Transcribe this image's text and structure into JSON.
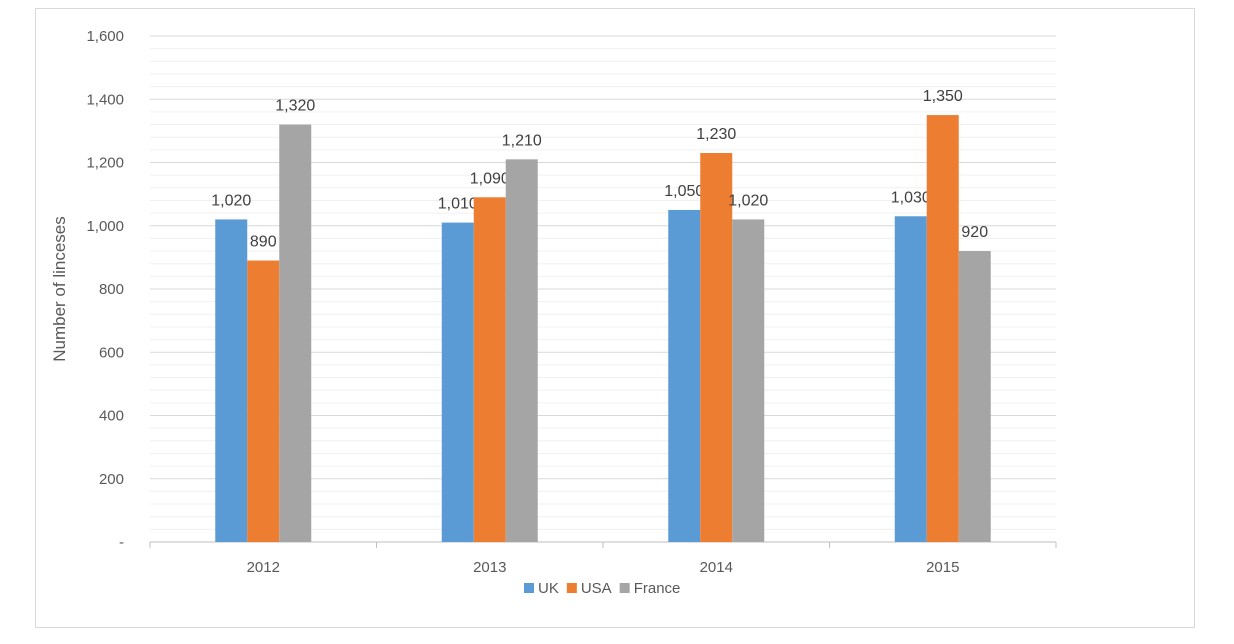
{
  "chart_data": {
    "type": "bar",
    "title": "",
    "xlabel": "",
    "ylabel": "Number of linceses",
    "categories": [
      "2012",
      "2013",
      "2014",
      "2015"
    ],
    "series": [
      {
        "name": "UK",
        "color": "#5b9bd5",
        "values": [
          1020,
          1010,
          1050,
          1030
        ],
        "labels": [
          "1,020",
          "1,010",
          "1,050",
          "1,030"
        ]
      },
      {
        "name": "USA",
        "color": "#ed7d31",
        "values": [
          890,
          1090,
          1230,
          1350
        ],
        "labels": [
          "890",
          "1,090",
          "1,230",
          "1,350"
        ]
      },
      {
        "name": "France",
        "color": "#a5a5a5",
        "values": [
          1320,
          1210,
          1020,
          920
        ],
        "labels": [
          "1,320",
          "1,210",
          "1,020",
          "920"
        ]
      }
    ],
    "ylim": [
      0,
      1600
    ],
    "yticks": [
      0,
      200,
      400,
      600,
      800,
      1000,
      1200,
      1400,
      1600
    ],
    "ytick_labels": [
      "-",
      "200",
      "400",
      "600",
      "800",
      "1,000",
      "1,200",
      "1,400",
      "1,600"
    ],
    "grid": true,
    "minor_grid": true,
    "legend_position": "bottom"
  }
}
